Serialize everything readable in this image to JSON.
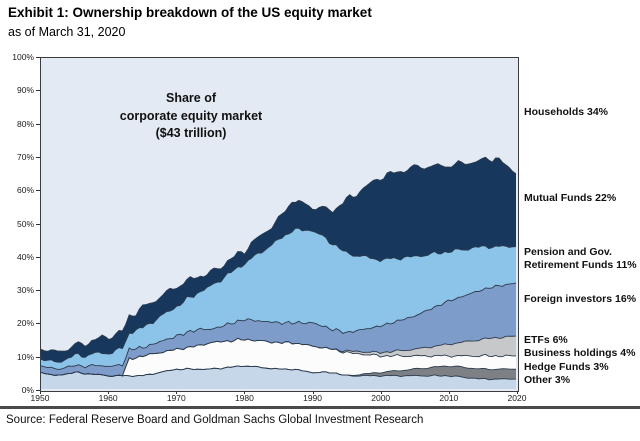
{
  "title": "Exhibit 1: Ownership breakdown of the US equity market",
  "subtitle": "as of March 31, 2020",
  "source": "Source: Federal Reserve Board and Goldman Sachs Global Investment Research",
  "annotation": {
    "line1": "Share of",
    "line2": "corporate equity market",
    "line3": "($43 trillion)"
  },
  "colors": {
    "plot_background": "#e4eaf4",
    "band_outline": "#2b3a4d",
    "frame": "#3c3c3c",
    "divider_rule": "#4a4a4a"
  },
  "chart_data": {
    "type": "area",
    "stacked": true,
    "title": "Share of corporate equity market ($43 trillion)",
    "xlabel": "",
    "ylabel": "",
    "xlim": [
      1950,
      2020
    ],
    "ylim": [
      0,
      100
    ],
    "grid": false,
    "legend_position": "right",
    "x_ticks": [
      1950,
      1960,
      1970,
      1980,
      1990,
      2000,
      2010,
      2020
    ],
    "y_ticks": [
      "0%",
      "10%",
      "20%",
      "30%",
      "40%",
      "50%",
      "60%",
      "70%",
      "80%",
      "90%",
      "100%"
    ],
    "x": [
      1950,
      1952,
      1955,
      1960,
      1962,
      1963,
      1965,
      1970,
      1973,
      1975,
      1980,
      1985,
      1987,
      1990,
      1993,
      1995,
      2000,
      2005,
      2010,
      2015,
      2017,
      2020
    ],
    "units": "percent of US corporate equity market",
    "series": [
      {
        "name": "other",
        "label_lines": [
          "Other 3%"
        ],
        "pct_2020": 3,
        "color": "#c7d7ea",
        "values": [
          5,
          4,
          5,
          4,
          4,
          4,
          4,
          6,
          6,
          6,
          7,
          6,
          6,
          5,
          5,
          4,
          4,
          4,
          4,
          3,
          3,
          3
        ]
      },
      {
        "name": "hedge-funds",
        "label_lines": [
          "Hedge Funds 3%"
        ],
        "pct_2020": 3,
        "color": "#7d8084",
        "values": [
          0,
          0,
          0,
          0,
          0,
          0,
          0,
          0,
          0,
          0,
          0,
          0,
          0,
          0,
          0,
          0,
          1,
          2,
          3,
          3,
          3,
          3
        ]
      },
      {
        "name": "business-holdings",
        "label_lines": [
          "Business holdings 4%"
        ],
        "pct_2020": 4,
        "color": "#fcfcfc",
        "values": [
          0,
          0,
          0,
          0,
          0,
          5,
          6,
          6,
          7,
          8,
          8,
          8,
          8,
          8,
          7,
          7,
          5,
          4,
          3,
          4,
          4,
          4
        ]
      },
      {
        "name": "etfs",
        "label_lines": [
          "ETFs 6%"
        ],
        "pct_2020": 6,
        "color": "#c7c8ca",
        "values": [
          0,
          0,
          0,
          0,
          0,
          0,
          0,
          0,
          0,
          0,
          0,
          0,
          0,
          0,
          0,
          0.5,
          1,
          2,
          3.5,
          5,
          5.5,
          6
        ]
      },
      {
        "name": "foreign-investors",
        "label_lines": [
          "Foreign investors 16%"
        ],
        "pct_2020": 16,
        "color": "#7e9cc9",
        "values": [
          2,
          2,
          2,
          3,
          3,
          3,
          2.5,
          4,
          5,
          4,
          6,
          6,
          6,
          7,
          6,
          5.5,
          8,
          10,
          13,
          15,
          15.5,
          16
        ]
      },
      {
        "name": "pension-gov-retirement-funds",
        "label_lines": [
          "Pension and Gov.",
          "Retirement Funds 11%"
        ],
        "pct_2020": 11,
        "color": "#8cc3e8",
        "values": [
          2,
          2,
          3,
          4,
          5,
          5,
          6,
          9,
          11,
          13,
          17,
          25,
          28,
          28,
          26,
          24,
          20,
          18,
          15,
          13,
          12,
          11
        ]
      },
      {
        "name": "mutual-funds",
        "label_lines": [
          "Mutual Funds 22%"
        ],
        "pct_2020": 22,
        "color": "#17375d",
        "values": [
          3,
          3,
          3,
          5,
          5,
          5,
          6,
          6,
          5,
          4,
          4,
          6,
          9,
          7,
          10,
          16,
          25,
          27,
          26,
          26,
          27,
          22
        ]
      },
      {
        "name": "households",
        "label_lines": [
          "Households 34%"
        ],
        "pct_2020": 34,
        "color": "#e4eaf4",
        "is_background": true,
        "values": [
          88,
          89,
          87,
          84,
          83,
          78,
          75.5,
          69,
          66,
          65,
          58,
          49,
          43,
          45,
          46,
          43,
          36,
          33,
          32.5,
          31,
          30,
          34
        ]
      }
    ]
  }
}
